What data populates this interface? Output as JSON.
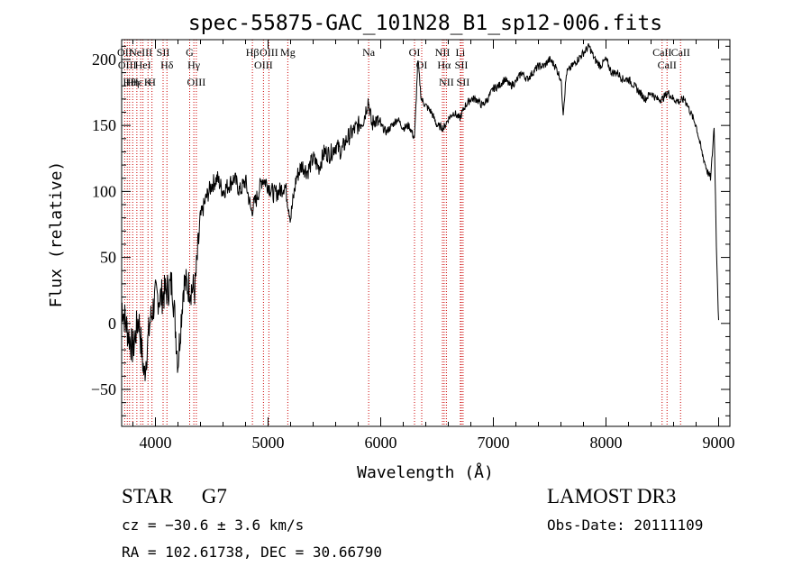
{
  "chart_data": {
    "type": "line",
    "title": "spec-55875-GAC_101N28_B1_sp12-006.fits",
    "xlabel": "Wavelength (Å)",
    "ylabel": "Flux (relative)",
    "xlim": [
      3700,
      9100
    ],
    "ylim": [
      -78,
      215
    ],
    "x_ticks": [
      4000,
      5000,
      6000,
      7000,
      8000,
      9000
    ],
    "y_ticks": [
      -50,
      0,
      50,
      100,
      150,
      200
    ],
    "series": [
      {
        "name": "spectrum",
        "x": [
          3700,
          3750,
          3800,
          3850,
          3900,
          3950,
          4000,
          4050,
          4100,
          4150,
          4200,
          4250,
          4300,
          4350,
          4400,
          4450,
          4500,
          4550,
          4600,
          4650,
          4700,
          4750,
          4800,
          4850,
          4900,
          4950,
          5000,
          5050,
          5100,
          5150,
          5200,
          5250,
          5300,
          5350,
          5400,
          5450,
          5500,
          5550,
          5600,
          5650,
          5700,
          5750,
          5800,
          5850,
          5890,
          5920,
          5950,
          6000,
          6050,
          6100,
          6150,
          6200,
          6250,
          6300,
          6330,
          6360,
          6400,
          6450,
          6500,
          6560,
          6600,
          6650,
          6700,
          6750,
          6800,
          6850,
          6900,
          6950,
          7000,
          7050,
          7100,
          7150,
          7200,
          7250,
          7300,
          7350,
          7400,
          7450,
          7500,
          7550,
          7600,
          7620,
          7650,
          7700,
          7750,
          7800,
          7850,
          7900,
          7950,
          8000,
          8050,
          8100,
          8150,
          8200,
          8250,
          8300,
          8350,
          8400,
          8450,
          8500,
          8550,
          8600,
          8650,
          8700,
          8750,
          8800,
          8850,
          8900,
          8930,
          8960,
          8980,
          9000
        ],
        "values": [
          15,
          -5,
          -20,
          5,
          -40,
          0,
          20,
          20,
          25,
          30,
          -30,
          30,
          28,
          25,
          80,
          95,
          105,
          110,
          100,
          105,
          110,
          100,
          108,
          85,
          95,
          110,
          105,
          98,
          100,
          105,
          80,
          110,
          120,
          115,
          125,
          118,
          130,
          128,
          135,
          130,
          140,
          145,
          150,
          155,
          170,
          150,
          155,
          150,
          145,
          150,
          155,
          148,
          150,
          140,
          200,
          170,
          165,
          160,
          150,
          148,
          155,
          160,
          155,
          165,
          170,
          170,
          165,
          170,
          178,
          180,
          185,
          180,
          183,
          190,
          185,
          190,
          195,
          195,
          200,
          195,
          185,
          160,
          190,
          195,
          200,
          205,
          210,
          200,
          195,
          200,
          190,
          190,
          185,
          185,
          180,
          175,
          170,
          175,
          170,
          170,
          175,
          170,
          168,
          170,
          160,
          150,
          130,
          115,
          110,
          150,
          60,
          0
        ]
      }
    ],
    "lines": [
      {
        "wl": 3727,
        "label": "OII"
      },
      {
        "wl": 3750,
        "label": "OIII"
      },
      {
        "wl": 3770,
        "label": "Hθ"
      },
      {
        "wl": 3798,
        "label": "Hη"
      },
      {
        "wl": 3835,
        "label": "Hε"
      },
      {
        "wl": 3869,
        "label": "NeIII"
      },
      {
        "wl": 3889,
        "label": "HeI"
      },
      {
        "wl": 3934,
        "label": "K"
      },
      {
        "wl": 3969,
        "label": "H"
      },
      {
        "wl": 4068,
        "label": "SII"
      },
      {
        "wl": 4102,
        "label": "Hδ"
      },
      {
        "wl": 4304,
        "label": "G"
      },
      {
        "wl": 4341,
        "label": "Hγ"
      },
      {
        "wl": 4363,
        "label": "OIII"
      },
      {
        "wl": 4861,
        "label": "Hβ"
      },
      {
        "wl": 4959,
        "label": "OIII"
      },
      {
        "wl": 5007,
        "label": "OIII"
      },
      {
        "wl": 5175,
        "label": "Mg"
      },
      {
        "wl": 5893,
        "label": "Na"
      },
      {
        "wl": 6300,
        "label": "OI"
      },
      {
        "wl": 6364,
        "label": "OI"
      },
      {
        "wl": 6548,
        "label": "NII"
      },
      {
        "wl": 6563,
        "label": "Hα"
      },
      {
        "wl": 6583,
        "label": "NII"
      },
      {
        "wl": 6707,
        "label": "Li"
      },
      {
        "wl": 6716,
        "label": "SII"
      },
      {
        "wl": 6731,
        "label": "SII"
      },
      {
        "wl": 8498,
        "label": "CaII"
      },
      {
        "wl": 8542,
        "label": "CaII"
      },
      {
        "wl": 8662,
        "label": "CaII"
      }
    ]
  },
  "info": {
    "class": "STAR",
    "subclass": "G7",
    "survey": "LAMOST DR3",
    "redshift": "cz = −30.6 ± 3.6 km/s",
    "obs_date": "Obs-Date: 20111109",
    "coords": "RA = 102.61738, DEC =  30.66790"
  },
  "colors": {
    "line_markers": "#cc0000",
    "spectrum": "#000000",
    "axes": "#000000"
  }
}
